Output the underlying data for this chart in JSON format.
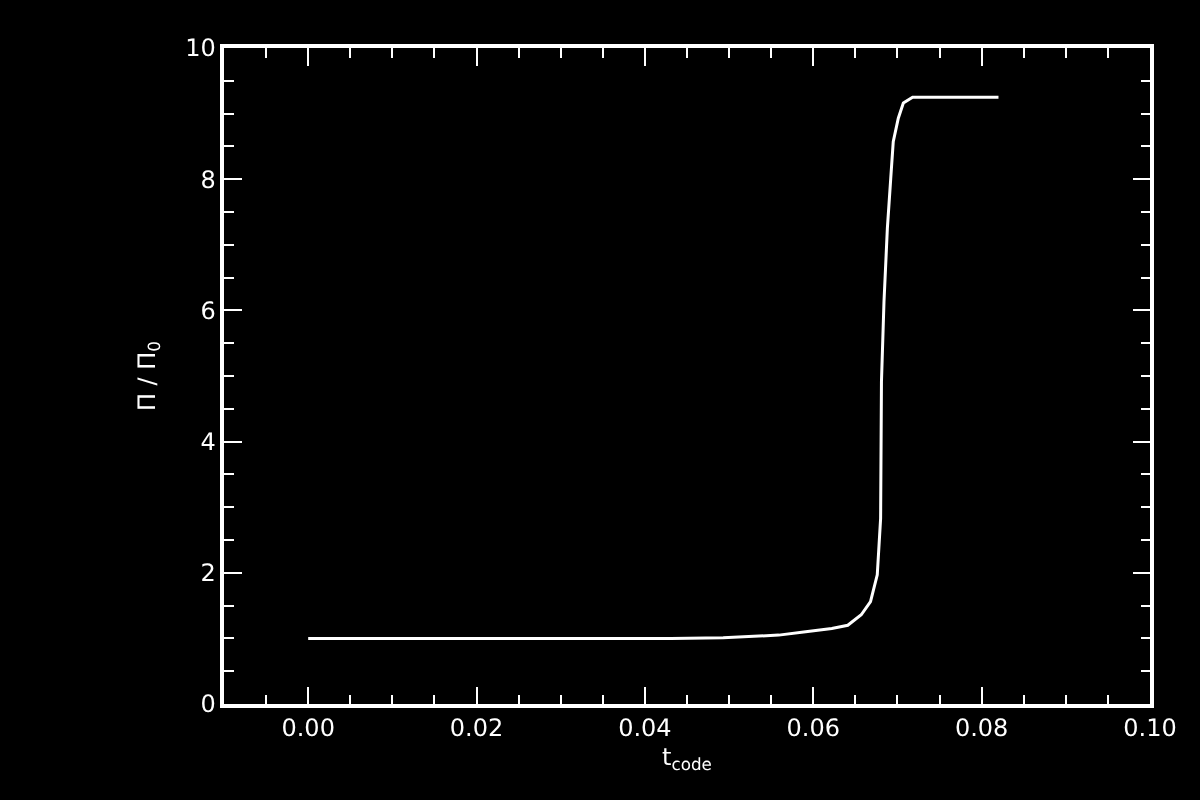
{
  "chart_data": {
    "type": "line",
    "xlabel": "t$_{code}$",
    "ylabel": "Π / Π$_{0}$",
    "x": [
      0.0,
      0.02,
      0.04,
      0.0431,
      0.0493,
      0.0559,
      0.0591,
      0.0622,
      0.0641,
      0.0657,
      0.0668,
      0.0676,
      0.068,
      0.0681,
      0.0684,
      0.0688,
      0.0692,
      0.0695,
      0.0701,
      0.0707,
      0.0718,
      0.082
    ],
    "series": [
      {
        "color": "#ffffff",
        "values": [
          1.0,
          1.0,
          1.0,
          1.0,
          1.01,
          1.05,
          1.1,
          1.15,
          1.2,
          1.36,
          1.56,
          1.97,
          2.83,
          4.91,
          6.13,
          7.25,
          8.01,
          8.57,
          8.93,
          9.16,
          9.25,
          9.25
        ]
      }
    ],
    "xlim": [
      -0.01,
      0.1
    ],
    "xticks": [
      {
        "value": 0,
        "label": "0.00"
      },
      {
        "value": 0.02,
        "label": "0.02"
      },
      {
        "value": 0.04,
        "label": "0.04"
      },
      {
        "value": 0.06,
        "label": "0.06"
      },
      {
        "value": 0.08,
        "label": "0.08"
      },
      {
        "value": 0.1,
        "label": "0.10"
      }
    ],
    "ylim": [
      0,
      10
    ],
    "yticks": [
      0,
      2,
      4,
      6,
      8,
      10
    ],
    "grid": false,
    "marker": "none",
    "line_style": "solid"
  }
}
